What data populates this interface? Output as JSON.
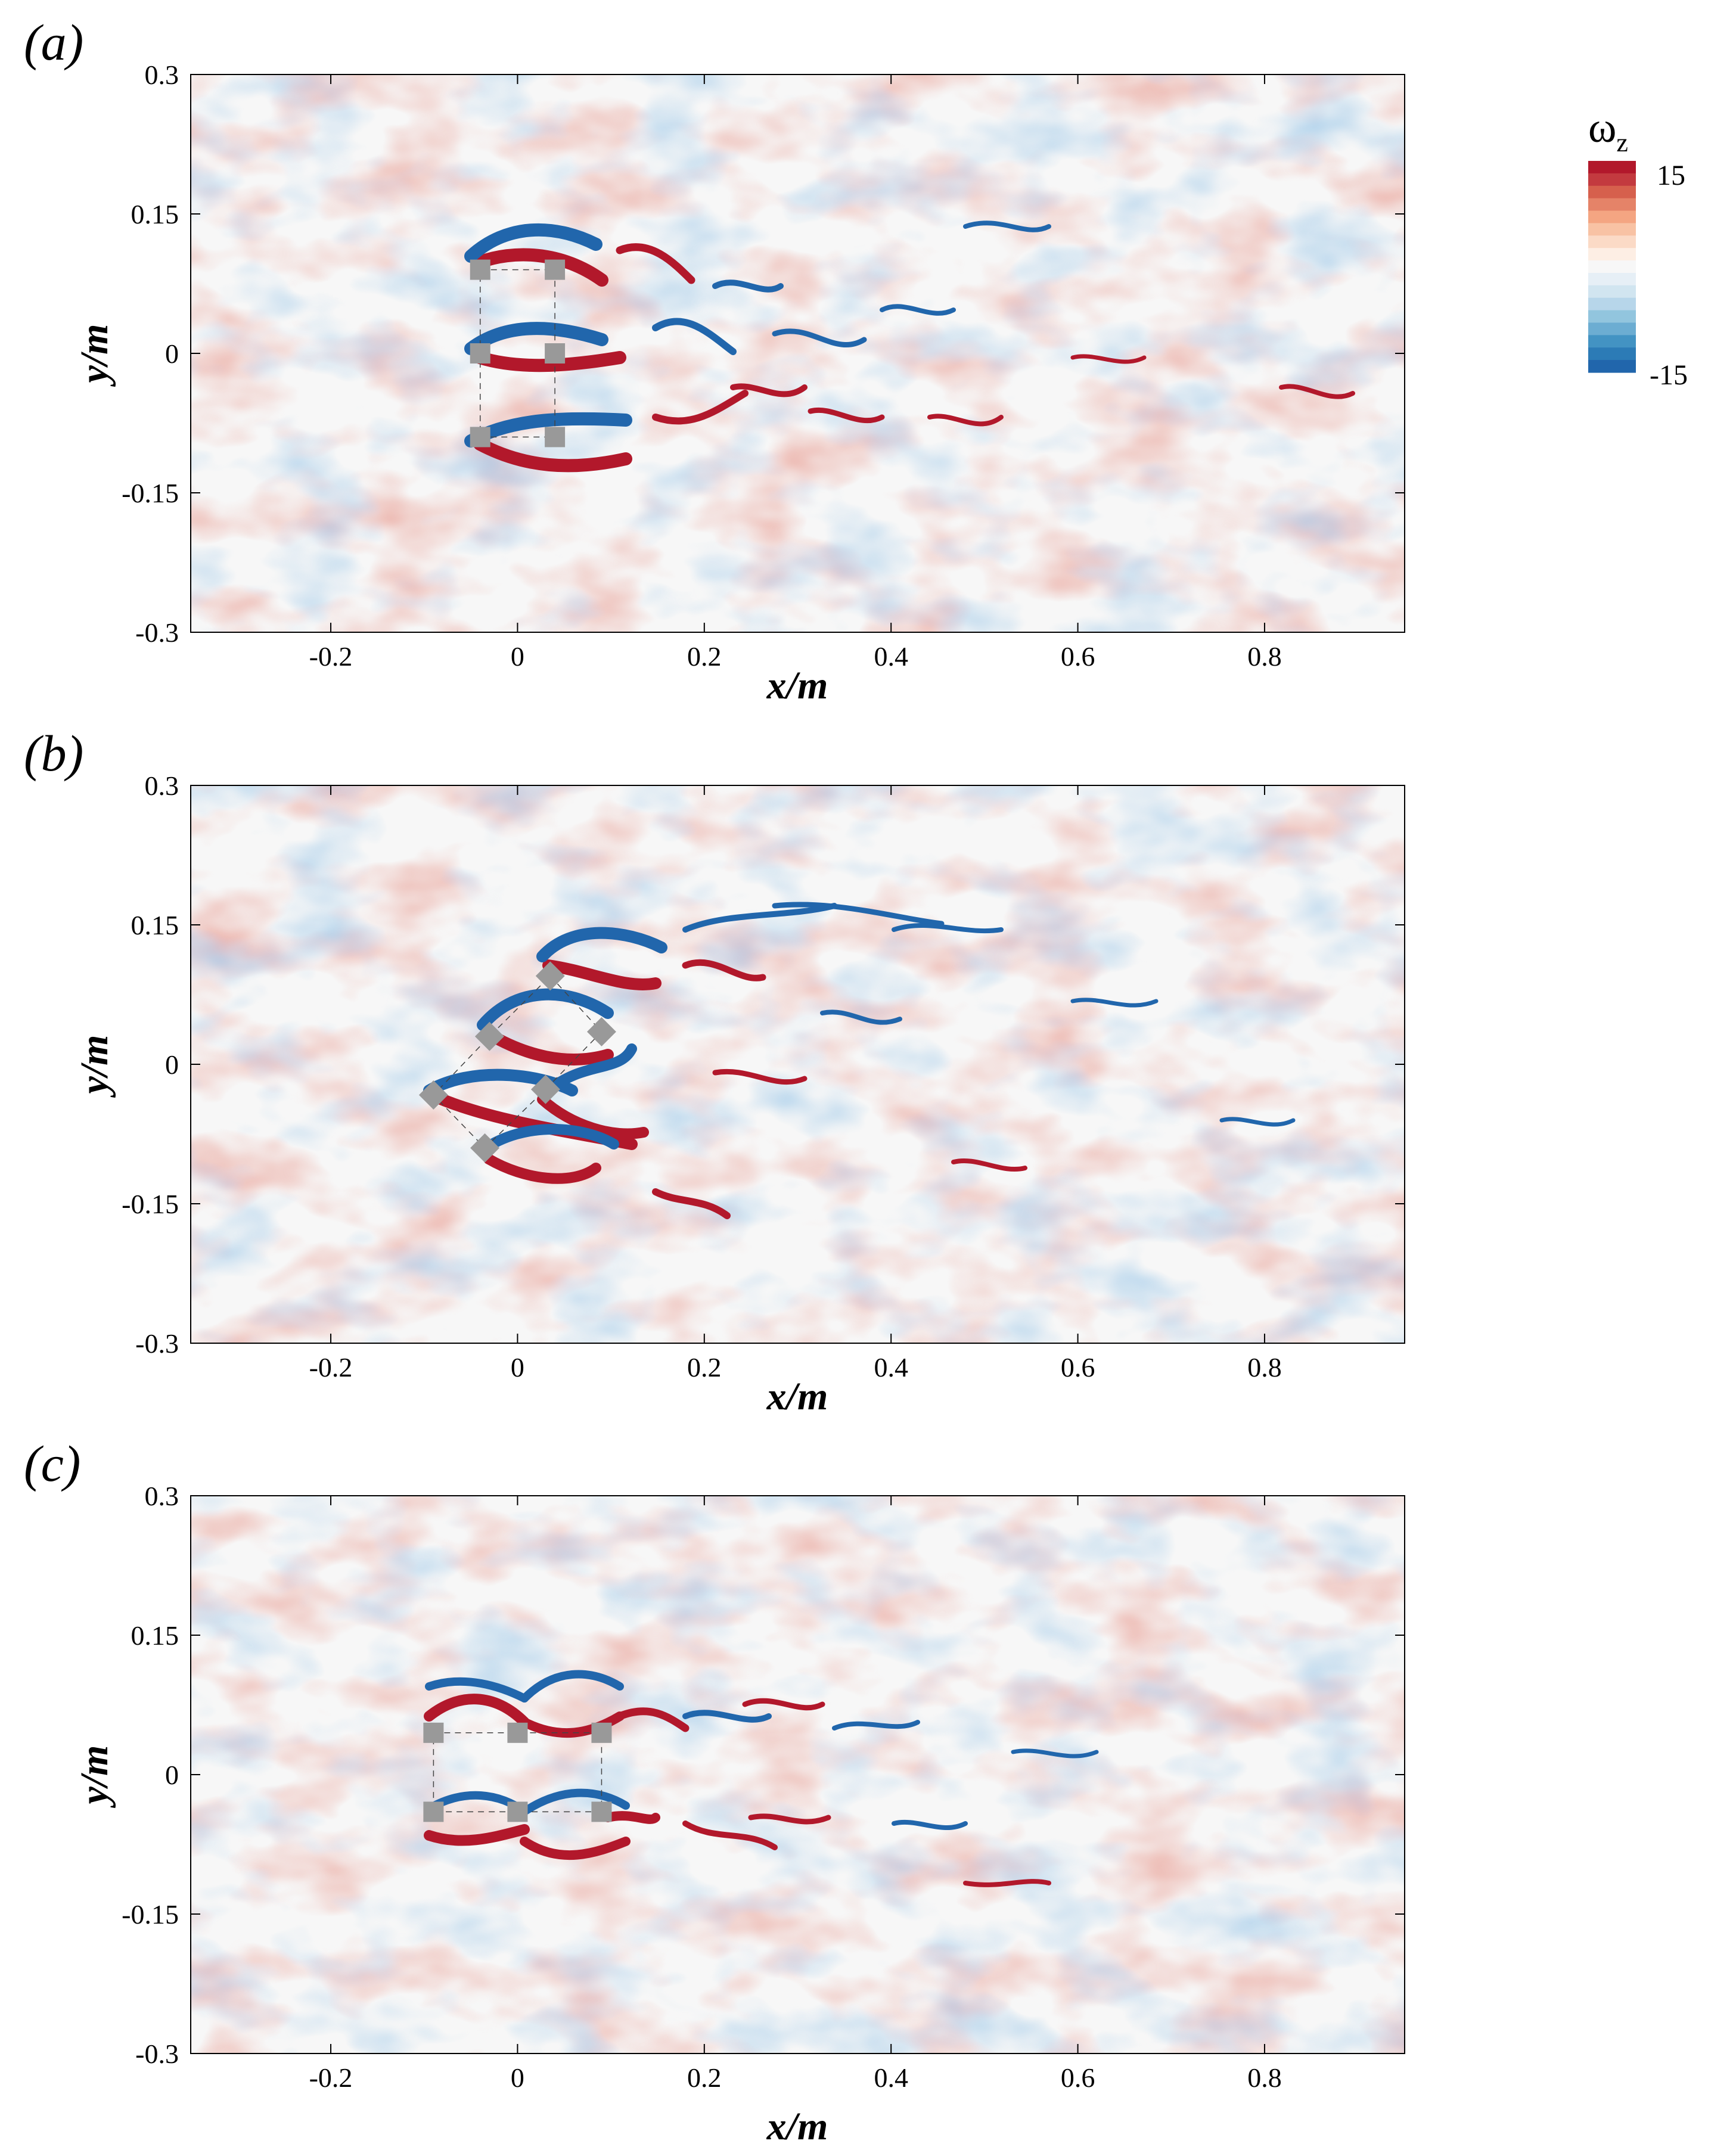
{
  "figure": {
    "colorbar": {
      "title_symbol": "ω",
      "title_subscript": "z",
      "max_label": "15",
      "min_label": "-15",
      "colors": [
        "#b2182b",
        "#c33a3f",
        "#d6604d",
        "#e58368",
        "#f4a582",
        "#f8c2a4",
        "#fbdac6",
        "#fdeee4",
        "#f7f7f7",
        "#e6eff6",
        "#d1e5f0",
        "#b7d6ea",
        "#92c5de",
        "#6cadd2",
        "#4393c3",
        "#2c7bb6",
        "#2166ac"
      ]
    },
    "colors": {
      "positive": "#b2182b",
      "negative": "#2166ac",
      "body": "#999999",
      "background": "#f7f7f7"
    },
    "panels": [
      {
        "letter": "(a)",
        "chart_data": {
          "type": "heatmap",
          "variable": "vorticity ω_z",
          "xlabel": "x/m",
          "ylabel": "y/m",
          "xlim": [
            -0.35,
            0.95
          ],
          "ylim": [
            -0.3,
            0.3
          ],
          "x_ticks": [
            "-0.2",
            "0",
            "0.2",
            "0.4",
            "0.6",
            "0.8"
          ],
          "y_ticks": [
            "0.3",
            "0.15",
            "0",
            "-0.15",
            "-0.3"
          ],
          "color_range": [
            -15,
            15
          ],
          "cylinders": [
            [
              -0.04,
              0.09
            ],
            [
              0.04,
              0.09
            ],
            [
              -0.04,
              0.0
            ],
            [
              0.04,
              0.0
            ],
            [
              -0.04,
              -0.09
            ],
            [
              0.04,
              -0.09
            ]
          ],
          "cylinder_shape": "square"
        }
      },
      {
        "letter": "(b)",
        "chart_data": {
          "type": "heatmap",
          "variable": "vorticity ω_z",
          "xlabel": "x/m",
          "ylabel": "y/m",
          "xlim": [
            -0.35,
            0.95
          ],
          "ylim": [
            -0.3,
            0.3
          ],
          "x_ticks": [
            "-0.2",
            "0",
            "0.2",
            "0.4",
            "0.6",
            "0.8"
          ],
          "y_ticks": [
            "0.3",
            "0.15",
            "0",
            "-0.15",
            "-0.3"
          ],
          "color_range": [
            -15,
            15
          ],
          "cylinders": [
            [
              0.035,
              0.095
            ],
            [
              -0.03,
              0.03
            ],
            [
              0.09,
              0.035
            ],
            [
              -0.09,
              -0.033
            ],
            [
              0.03,
              -0.027
            ],
            [
              -0.035,
              -0.09
            ]
          ],
          "cylinder_shape": "diamond"
        }
      },
      {
        "letter": "(c)",
        "chart_data": {
          "type": "heatmap",
          "variable": "vorticity ω_z",
          "xlabel": "x/m",
          "ylabel": "y/m",
          "xlim": [
            -0.35,
            0.95
          ],
          "ylim": [
            -0.3,
            0.3
          ],
          "x_ticks": [
            "-0.2",
            "0",
            "0.2",
            "0.4",
            "0.6",
            "0.8"
          ],
          "y_ticks": [
            "0.3",
            "0.15",
            "0",
            "-0.15",
            "-0.3"
          ],
          "color_range": [
            -15,
            15
          ],
          "cylinders": [
            [
              -0.09,
              0.045
            ],
            [
              0.0,
              0.045
            ],
            [
              0.09,
              0.045
            ],
            [
              -0.09,
              -0.04
            ],
            [
              0.0,
              -0.04
            ],
            [
              0.09,
              -0.04
            ]
          ],
          "cylinder_shape": "square"
        }
      }
    ]
  }
}
